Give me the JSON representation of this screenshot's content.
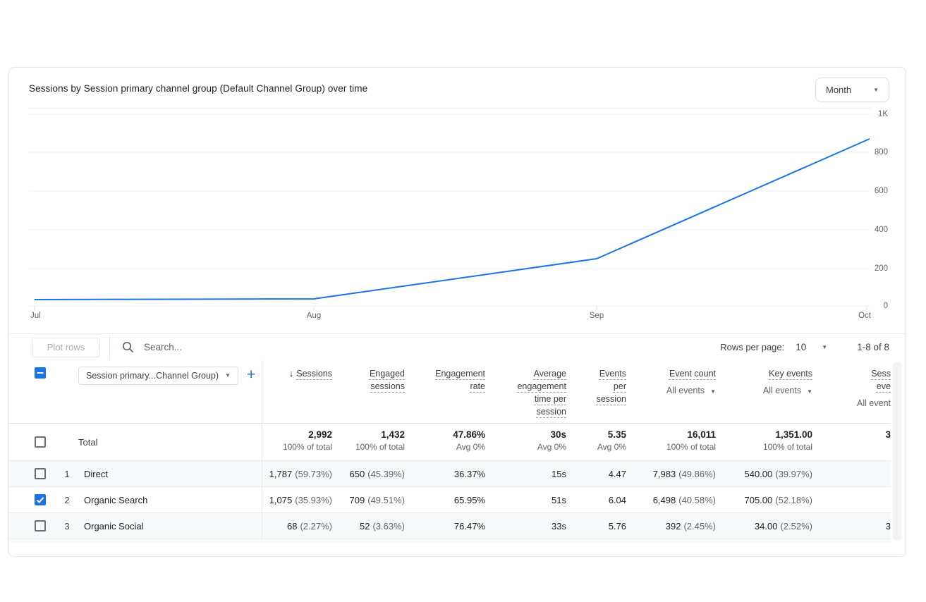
{
  "card": {
    "title": "Sessions by Session primary channel group (Default Channel Group) over time",
    "granularity_label": "Month"
  },
  "chart_data": {
    "type": "line",
    "title": "Sessions by Session primary channel group (Default Channel Group) over time",
    "x": [
      "Jul",
      "Aug",
      "Sep",
      "Oct"
    ],
    "series": [
      {
        "name": "Sessions",
        "values": [
          30,
          40,
          245,
          870
        ]
      }
    ],
    "ylim": [
      0,
      1000
    ],
    "y_ticks": [
      "1K",
      "800",
      "600",
      "400",
      "200",
      "0"
    ],
    "line_color": "#1a73e8",
    "grid": true,
    "legend": false
  },
  "toolbar": {
    "plot_rows_label": "Plot rows",
    "search_placeholder": "Search...",
    "rows_per_page_label": "Rows per page:",
    "rows_per_page_value": "10",
    "range_label": "1-8 of 8"
  },
  "table": {
    "dimension_selector_label": "Session primary...Channel Group)",
    "columns": [
      {
        "id": "sessions",
        "label": "Sessions",
        "sorted": true
      },
      {
        "id": "engaged-sessions",
        "label": "Engaged\nsessions"
      },
      {
        "id": "engagement-rate",
        "label": "Engagement\nrate"
      },
      {
        "id": "average-engagement-time-per-session",
        "label": "Average\nengagement\ntime per\nsession"
      },
      {
        "id": "events-per-session",
        "label": "Events\nper\nsession"
      },
      {
        "id": "event-count",
        "label": "Event count",
        "sub": "All events",
        "sub_caret": true
      },
      {
        "id": "key-events",
        "label": "Key events",
        "sub": "All events",
        "sub_caret": true
      },
      {
        "id": "session-key-events",
        "label": "Sess\neve",
        "sub": "All event",
        "sub_caret": false
      }
    ],
    "total": {
      "label": "Total",
      "cells": [
        {
          "v": "2,992",
          "s": "100% of total"
        },
        {
          "v": "1,432",
          "s": "100% of total"
        },
        {
          "v": "47.86%",
          "s": "Avg 0%"
        },
        {
          "v": "30s",
          "s": "Avg 0%"
        },
        {
          "v": "5.35",
          "s": "Avg 0%"
        },
        {
          "v": "16,011",
          "s": "100% of total"
        },
        {
          "v": "1,351.00",
          "s": "100% of total"
        },
        {
          "v": "3",
          "s": ""
        }
      ]
    },
    "rows": [
      {
        "index": "1",
        "name": "Direct",
        "checked": false,
        "cells": [
          {
            "v": "1,787",
            "p": "(59.73%)"
          },
          {
            "v": "650",
            "p": "(45.39%)"
          },
          {
            "v": "36.37%",
            "p": ""
          },
          {
            "v": "15s",
            "p": ""
          },
          {
            "v": "4.47",
            "p": ""
          },
          {
            "v": "7,983",
            "p": "(49.86%)"
          },
          {
            "v": "540.00",
            "p": "(39.97%)"
          },
          {
            "v": "",
            "p": ""
          }
        ]
      },
      {
        "index": "2",
        "name": "Organic Search",
        "checked": true,
        "cells": [
          {
            "v": "1,075",
            "p": "(35.93%)"
          },
          {
            "v": "709",
            "p": "(49.51%)"
          },
          {
            "v": "65.95%",
            "p": ""
          },
          {
            "v": "51s",
            "p": ""
          },
          {
            "v": "6.04",
            "p": ""
          },
          {
            "v": "6,498",
            "p": "(40.58%)"
          },
          {
            "v": "705.00",
            "p": "(52.18%)"
          },
          {
            "v": "",
            "p": ""
          }
        ]
      },
      {
        "index": "3",
        "name": "Organic Social",
        "checked": false,
        "cells": [
          {
            "v": "68",
            "p": "(2.27%)"
          },
          {
            "v": "52",
            "p": "(3.63%)"
          },
          {
            "v": "76.47%",
            "p": ""
          },
          {
            "v": "33s",
            "p": ""
          },
          {
            "v": "5.76",
            "p": ""
          },
          {
            "v": "392",
            "p": "(2.45%)"
          },
          {
            "v": "34.00",
            "p": "(2.52%)"
          },
          {
            "v": "3",
            "p": ""
          }
        ]
      }
    ]
  },
  "icons": {
    "caret_down": "▼",
    "sort_desc": "↓",
    "plus": "+"
  }
}
